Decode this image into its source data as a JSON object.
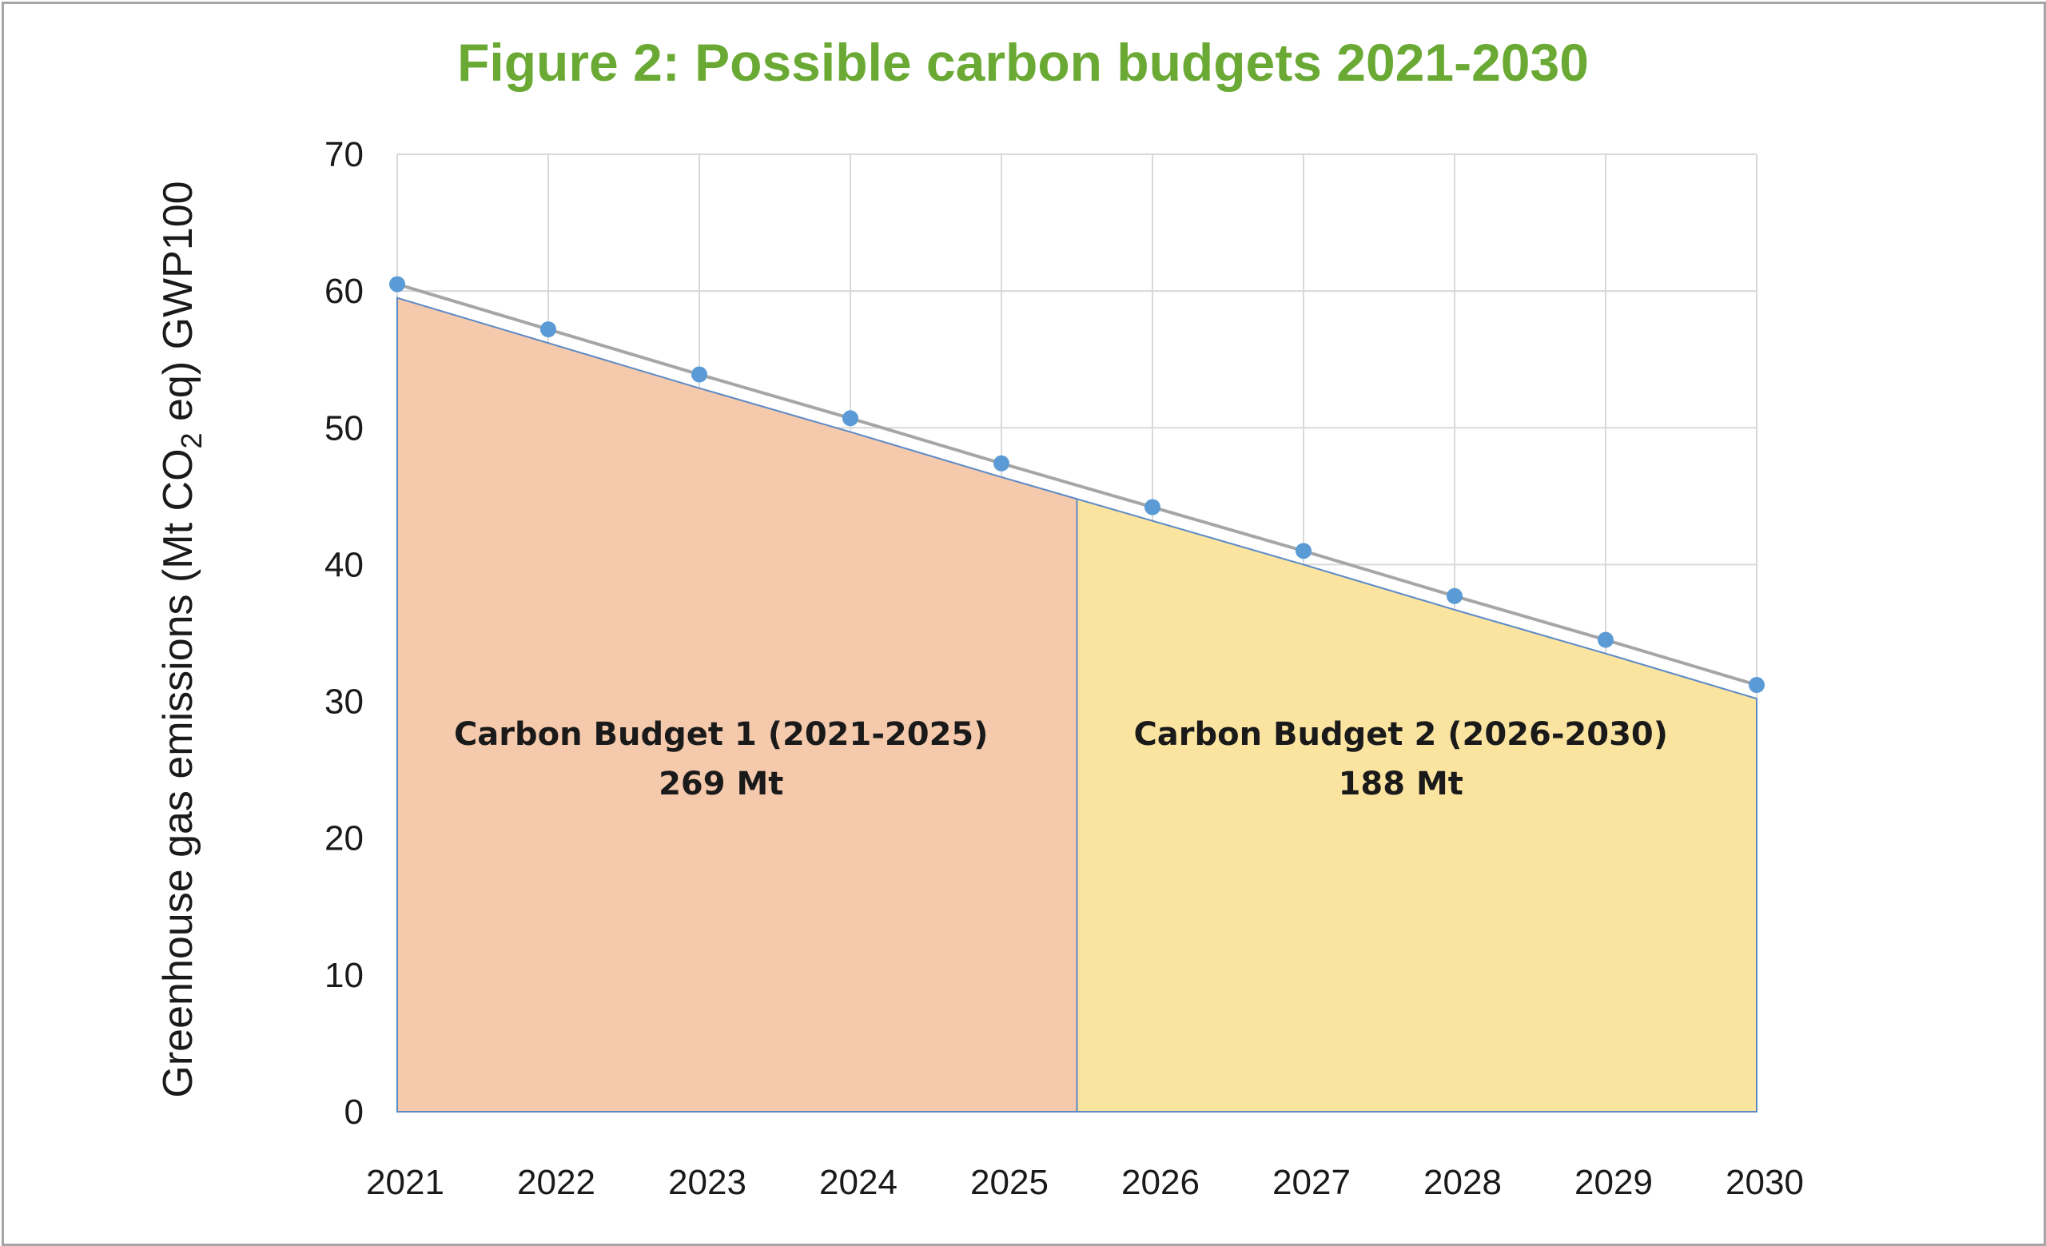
{
  "chart_data": {
    "type": "area",
    "title": "Figure 2: Possible carbon budgets 2021-2030",
    "ylabel_parts": [
      "Greenhouse gas emissions (Mt CO",
      "2",
      " eq) GWP100"
    ],
    "xlabel": "",
    "x": [
      "2021",
      "2022",
      "2023",
      "2024",
      "2025",
      "2026",
      "2027",
      "2028",
      "2029",
      "2030"
    ],
    "series": [
      {
        "values": [
          60.5,
          57.2,
          53.9,
          50.7,
          47.4,
          44.2,
          41.0,
          37.7,
          34.5,
          31.2
        ]
      }
    ],
    "ylim": [
      0,
      70
    ],
    "yticks": [
      "0",
      "10",
      "20",
      "30",
      "40",
      "50",
      "60",
      "70"
    ],
    "grid": true,
    "legend": "none",
    "regions": [
      {
        "label_line1": "Carbon Budget 1 (2021-2025)",
        "label_line2": "269 Mt",
        "x_start": 0,
        "x_end": 4.5,
        "color": "#f5c9ab"
      },
      {
        "label_line1": "Carbon Budget 2 (2026-2030)",
        "label_line2": "188 Mt",
        "x_start": 4.5,
        "x_end": 9,
        "color": "#fbe3a0"
      }
    ],
    "colors": {
      "title": "#6aaa34",
      "marker": "#5b9bd5",
      "line": "#a6a6a6",
      "grid": "#d9d9d9",
      "region_border": "#5b8ac6"
    }
  }
}
